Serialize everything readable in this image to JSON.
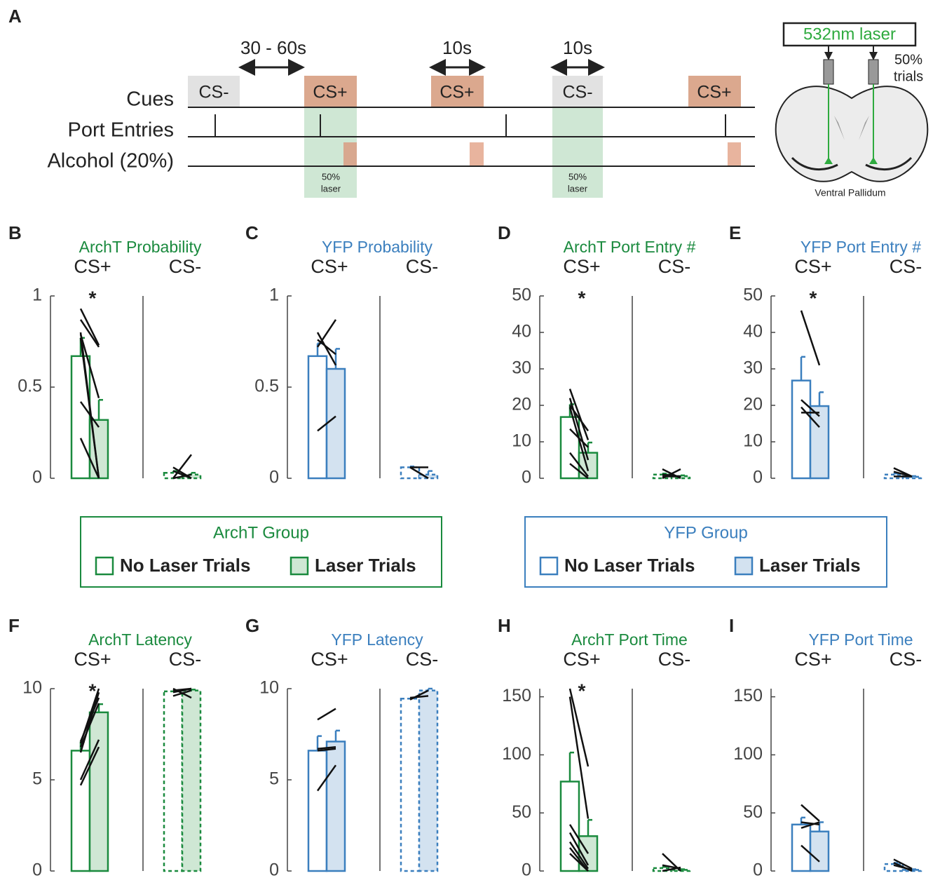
{
  "panel_a": {
    "label": "A",
    "intervals": [
      "30 - 60s",
      "10s",
      "10s"
    ],
    "rows": [
      "Cues",
      "Port Entries",
      "Alcohol (20%)"
    ],
    "cues": [
      "CS-",
      "CS+",
      "CS+",
      "CS-",
      "CS+"
    ],
    "laser_pct": "50%",
    "laser_word": "laser",
    "laser_box": "532nm laser",
    "trials_pct": "50%",
    "trials_word": "trials",
    "brain_label": "Ventral Pallidum"
  },
  "legends": [
    {
      "title": "ArchT Group",
      "color": "#1a8a3e",
      "fill": "#cfe7d4",
      "items": [
        "No Laser Trials",
        "Laser Trials"
      ]
    },
    {
      "title": "YFP Group",
      "color": "#3b7fbe",
      "fill": "#d3e2f0",
      "items": [
        "No Laser Trials",
        "Laser Trials"
      ]
    }
  ],
  "chart_data": [
    {
      "type": "bar",
      "label": "B",
      "title": "ArchT Probability",
      "title_color": "#1a8a3e",
      "categories": [
        "CS+",
        "CS-"
      ],
      "dashed": [
        false,
        true
      ],
      "annotation": "*",
      "ylim": [
        0,
        1
      ],
      "yticks": [
        0,
        0.5,
        1
      ],
      "series": [
        {
          "color": "#1a8a3e",
          "fill": "#ffffff",
          "values": [
            0.67,
            0.03
          ],
          "errors": [
            0.1,
            0.01
          ]
        },
        {
          "color": "#1a8a3e",
          "fill": "#cfe7d4",
          "values": [
            0.32,
            0.02
          ],
          "errors": [
            0.11,
            0.01
          ]
        }
      ],
      "subjects": [
        [
          [
            0.93,
            0.73
          ],
          [
            0.87,
            0.72
          ],
          [
            0.79,
            0.44
          ],
          [
            0.77,
            0.0
          ],
          [
            0.8,
            0.0
          ],
          [
            0.42,
            0.28
          ],
          [
            0.22,
            0.0
          ]
        ],
        [
          [
            0.0,
            0.13
          ],
          [
            0.06,
            0.0
          ],
          [
            0.04,
            0.0
          ],
          [
            0.0,
            0.02
          ]
        ]
      ]
    },
    {
      "type": "bar",
      "label": "C",
      "title": "YFP Probability",
      "title_color": "#3b7fbe",
      "categories": [
        "CS+",
        "CS-"
      ],
      "dashed": [
        false,
        true
      ],
      "ylim": [
        0,
        1
      ],
      "yticks": [
        0,
        0.5,
        1
      ],
      "series": [
        {
          "color": "#3b7fbe",
          "fill": "#ffffff",
          "values": [
            0.67,
            0.06
          ],
          "errors": [
            0.07,
            0.005
          ]
        },
        {
          "color": "#3b7fbe",
          "fill": "#d3e2f0",
          "values": [
            0.6,
            0.02
          ],
          "errors": [
            0.11,
            0.02
          ]
        }
      ],
      "subjects": [
        [
          [
            0.8,
            0.62
          ],
          [
            0.72,
            0.87
          ],
          [
            0.76,
            0.68
          ],
          [
            0.26,
            0.34
          ]
        ],
        [
          [
            0.06,
            0.06
          ],
          [
            0.06,
            0.0
          ]
        ]
      ]
    },
    {
      "type": "bar",
      "label": "D",
      "title": "ArchT Port Entry #",
      "title_color": "#1a8a3e",
      "categories": [
        "CS+",
        "CS-"
      ],
      "dashed": [
        false,
        true
      ],
      "annotation": "*",
      "ylim": [
        0,
        50
      ],
      "yticks": [
        0,
        10,
        20,
        30,
        40,
        50
      ],
      "series": [
        {
          "color": "#1a8a3e",
          "fill": "#ffffff",
          "values": [
            16.8,
            1.0
          ],
          "errors": [
            3.5,
            0.3
          ]
        },
        {
          "color": "#1a8a3e",
          "fill": "#cfe7d4",
          "values": [
            7,
            0.6
          ],
          "errors": [
            2.8,
            0.2
          ]
        }
      ],
      "subjects": [
        [
          [
            24.5,
            10.5
          ],
          [
            22,
            5
          ],
          [
            20,
            13
          ],
          [
            19.5,
            2
          ],
          [
            13.5,
            8.5
          ],
          [
            7,
            0.5
          ],
          [
            4,
            0
          ]
        ],
        [
          [
            2.5,
            0
          ],
          [
            0,
            2.5
          ],
          [
            1,
            0.5
          ],
          [
            0.5,
            0.5
          ]
        ]
      ]
    },
    {
      "type": "bar",
      "label": "E",
      "title": "YFP Port Entry #",
      "title_color": "#3b7fbe",
      "categories": [
        "CS+",
        "CS-"
      ],
      "dashed": [
        false,
        true
      ],
      "annotation": "*",
      "ylim": [
        0,
        50
      ],
      "yticks": [
        0,
        10,
        20,
        30,
        40,
        50
      ],
      "series": [
        {
          "color": "#3b7fbe",
          "fill": "#ffffff",
          "values": [
            26.8,
            1.0
          ],
          "errors": [
            6.5,
            0.3
          ]
        },
        {
          "color": "#3b7fbe",
          "fill": "#d3e2f0",
          "values": [
            19.8,
            0.4
          ],
          "errors": [
            3.8,
            0.2
          ]
        }
      ],
      "subjects": [
        [
          [
            46,
            31
          ],
          [
            21.5,
            17
          ],
          [
            19.5,
            14
          ],
          [
            18,
            18
          ]
        ],
        [
          [
            2.8,
            0.5
          ],
          [
            1.8,
            0.5
          ],
          [
            0.5,
            0.5
          ]
        ]
      ]
    },
    {
      "type": "bar",
      "label": "F",
      "title": "ArchT Latency",
      "title_color": "#1a8a3e",
      "categories": [
        "CS+",
        "CS-"
      ],
      "dashed": [
        false,
        true
      ],
      "annotation": "*",
      "ylim": [
        0,
        10
      ],
      "yticks": [
        0,
        5,
        10
      ],
      "series": [
        {
          "color": "#1a8a3e",
          "fill": "#ffffff",
          "values": [
            6.6,
            9.85
          ],
          "errors": [
            0.5,
            0.05
          ]
        },
        {
          "color": "#1a8a3e",
          "fill": "#cfe7d4",
          "values": [
            8.7,
            9.9
          ],
          "errors": [
            0.45,
            0.05
          ]
        }
      ],
      "subjects": [
        [
          [
            7,
            10
          ],
          [
            6.8,
            9.2
          ],
          [
            6.5,
            9.8
          ],
          [
            5.0,
            7.2
          ],
          [
            4.7,
            6.8
          ],
          [
            7.1,
            9.5
          ]
        ],
        [
          [
            9.8,
            10
          ],
          [
            10,
            9.5
          ],
          [
            9.9,
            10
          ],
          [
            9.6,
            9.9
          ]
        ]
      ]
    },
    {
      "type": "bar",
      "label": "G",
      "title": "YFP Latency",
      "title_color": "#3b7fbe",
      "categories": [
        "CS+",
        "CS-"
      ],
      "dashed": [
        false,
        true
      ],
      "ylim": [
        0,
        10
      ],
      "yticks": [
        0,
        5,
        10
      ],
      "series": [
        {
          "color": "#3b7fbe",
          "fill": "#ffffff",
          "values": [
            6.6,
            9.45
          ],
          "errors": [
            0.8,
            0.05
          ]
        },
        {
          "color": "#3b7fbe",
          "fill": "#d3e2f0",
          "values": [
            7.1,
            9.9
          ],
          "errors": [
            0.6,
            0.1
          ]
        }
      ],
      "subjects": [
        [
          [
            8.3,
            8.9
          ],
          [
            6.7,
            6.8
          ],
          [
            6.6,
            6.7
          ],
          [
            4.4,
            5.8
          ]
        ],
        [
          [
            9.4,
            9.9
          ],
          [
            9.5,
            9.6
          ]
        ]
      ]
    },
    {
      "type": "bar",
      "label": "H",
      "title": "ArchT Port Time",
      "title_color": "#1a8a3e",
      "categories": [
        "CS+",
        "CS-"
      ],
      "dashed": [
        false,
        true
      ],
      "annotation": "*",
      "ylim": [
        0,
        157
      ],
      "yticks": [
        0,
        50,
        100,
        150
      ],
      "series": [
        {
          "color": "#1a8a3e",
          "fill": "#ffffff",
          "values": [
            77,
            2.5
          ],
          "errors": [
            25,
            1
          ]
        },
        {
          "color": "#1a8a3e",
          "fill": "#cfe7d4",
          "values": [
            30,
            1
          ],
          "errors": [
            14,
            0.5
          ]
        }
      ],
      "subjects": [
        [
          [
            157,
            90
          ],
          [
            150,
            45
          ],
          [
            40,
            15
          ],
          [
            33,
            5
          ],
          [
            25,
            2
          ],
          [
            20,
            0
          ],
          [
            15,
            0
          ]
        ],
        [
          [
            15,
            0
          ],
          [
            5,
            2
          ],
          [
            0,
            3
          ]
        ]
      ]
    },
    {
      "type": "bar",
      "label": "I",
      "title": "YFP Port Time",
      "title_color": "#3b7fbe",
      "categories": [
        "CS+",
        "CS-"
      ],
      "dashed": [
        false,
        true
      ],
      "ylim": [
        0,
        157
      ],
      "yticks": [
        0,
        50,
        100,
        150
      ],
      "series": [
        {
          "color": "#3b7fbe",
          "fill": "#ffffff",
          "values": [
            40,
            6
          ],
          "errors": [
            6,
            1
          ]
        },
        {
          "color": "#3b7fbe",
          "fill": "#d3e2f0",
          "values": [
            34,
            1
          ],
          "errors": [
            8,
            0.5
          ]
        }
      ],
      "subjects": [
        [
          [
            57,
            43
          ],
          [
            42,
            40
          ],
          [
            37,
            42
          ],
          [
            22,
            8
          ]
        ],
        [
          [
            10,
            2
          ],
          [
            7,
            0
          ],
          [
            5,
            1
          ]
        ]
      ]
    }
  ]
}
